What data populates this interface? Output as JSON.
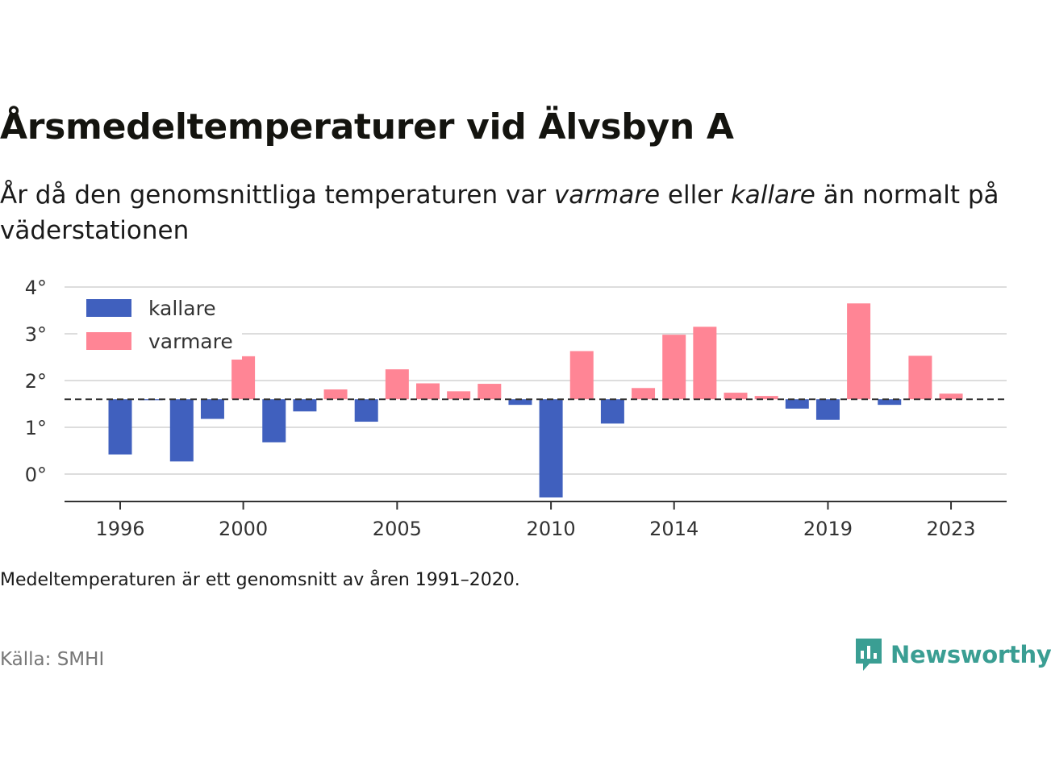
{
  "title": "Årsmedeltemperaturer vid Älvsbyn A",
  "subtitle": {
    "before": "År då den genomsnittliga temperaturen var ",
    "warm_word": "varmare",
    "middle": " eller ",
    "cold_word": "kallare",
    "after": " än normalt på väderstationen"
  },
  "note": "Medeltemperaturen är ett genomsnitt av åren 1991–2020.",
  "source": "Källa: SMHI",
  "brand": {
    "name": "Newsworthy",
    "icon": "newsworthy-logo-icon"
  },
  "colors": {
    "kallare": "#4060be",
    "varmare": "#ff8595",
    "baseline": "#333333",
    "grid": "#dddddd"
  },
  "chart_data": {
    "type": "bar",
    "baseline": 1.6,
    "x_ticks": [
      "1996",
      "2000",
      "2005",
      "2010",
      "2014",
      "2019",
      "2023"
    ],
    "y_ticks": [
      "0°",
      "1°",
      "2°",
      "3°",
      "4°"
    ],
    "ylim": [
      -0.5,
      4
    ],
    "legend": {
      "position": "top-left",
      "entries": [
        {
          "label": "kallare",
          "color": "#4060be"
        },
        {
          "label": "varmare",
          "color": "#ff8595"
        }
      ]
    },
    "series": [
      {
        "name": "kallare",
        "color": "#4060be"
      },
      {
        "name": "varmare",
        "color": "#ff8595"
      }
    ],
    "x": [
      1996,
      1997,
      1998,
      1999,
      2000,
      2001,
      2002,
      2003,
      2004,
      2005,
      2006,
      2007,
      2008,
      2009,
      2010,
      2011,
      2012,
      2013,
      2014,
      2015,
      2016,
      2017,
      2018,
      2019,
      2020,
      2021,
      2022,
      2023
    ],
    "values": [
      0.42,
      1.58,
      0.27,
      1.18,
      2.52,
      0.68,
      1.34,
      1.81,
      1.12,
      2.24,
      1.94,
      1.77,
      1.93,
      1.48,
      -0.5,
      2.63,
      1.08,
      1.84,
      2.98,
      3.15,
      1.74,
      1.67,
      1.4,
      1.16,
      3.65,
      1.48,
      2.53,
      1.72
    ]
  }
}
